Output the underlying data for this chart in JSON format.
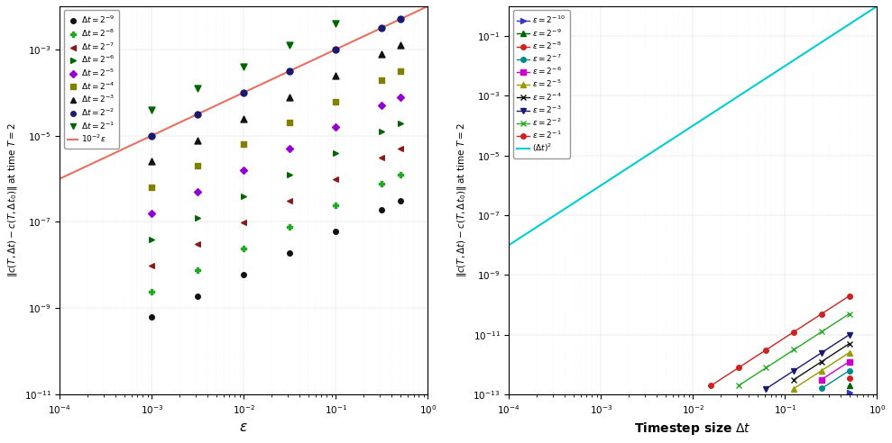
{
  "left_plot": {
    "xlabel": "$\\varepsilon$",
    "ylabel": "$\\|c(T, \\Delta t) - c(T, \\Delta t_0)\\|$ at time $T = 2$",
    "xlim_log": [
      -4,
      0
    ],
    "ylim_log": [
      -11,
      -2
    ],
    "eps_values_log10": [
      -3.0,
      -2.5,
      -2.0,
      -1.5,
      -1.0,
      -0.5,
      -0.3
    ],
    "dt_series": [
      {
        "label": "$\\Delta t = 2^{-9}$",
        "exp": -9,
        "color": "#111111",
        "marker": "o",
        "ms": 4
      },
      {
        "label": "$\\Delta t = 2^{-8}$",
        "exp": -8,
        "color": "#22aa22",
        "marker": "P",
        "ms": 4
      },
      {
        "label": "$\\Delta t = 2^{-7}$",
        "exp": -7,
        "color": "#8b1a1a",
        "marker": "<",
        "ms": 4
      },
      {
        "label": "$\\Delta t = 2^{-6}$",
        "exp": -6,
        "color": "#006400",
        "marker": ">",
        "ms": 4
      },
      {
        "label": "$\\Delta t = 2^{-5}$",
        "exp": -5,
        "color": "#9400d3",
        "marker": "D",
        "ms": 4
      },
      {
        "label": "$\\Delta t = 2^{-4}$",
        "exp": -4,
        "color": "#808000",
        "marker": "s",
        "ms": 5
      },
      {
        "label": "$\\Delta t = 2^{-3}$",
        "exp": -3,
        "color": "#111111",
        "marker": "^",
        "ms": 5
      },
      {
        "label": "$\\Delta t = 2^{-2}$",
        "exp": -2,
        "color": "#191970",
        "marker": "o",
        "ms": 5
      },
      {
        "label": "$\\Delta t = 2^{-1}$",
        "exp": -1,
        "color": "#006400",
        "marker": "v",
        "ms": 5
      }
    ],
    "ref_line_color": "#e87060",
    "ref_line_label": "$10^{-2}\\varepsilon$",
    "ref_coeff": 0.01
  },
  "right_plot": {
    "xlabel": "Timestep size $\\Delta t$",
    "ylabel": "$\\|c(T, \\Delta t) - c(T, \\Delta t_0)\\|$ at time $T = 2$",
    "xlim_log": [
      -4,
      0
    ],
    "ylim_log": [
      -13,
      0
    ],
    "dt_exp_min": -13,
    "dt_exp_max": -1,
    "eps_series": [
      {
        "label": "$\\varepsilon = 2^{-10}$",
        "exp": -10,
        "color": "#3333cc",
        "marker": ">",
        "ms": 4,
        "C_log": -12.35
      },
      {
        "label": "$\\varepsilon = 2^{-9}$",
        "exp": -9,
        "color": "#006400",
        "marker": "^",
        "ms": 4,
        "C_log": -12.1
      },
      {
        "label": "$\\varepsilon = 2^{-8}$",
        "exp": -8,
        "color": "#cc2222",
        "marker": "o",
        "ms": 4,
        "C_log": -11.85
      },
      {
        "label": "$\\varepsilon = 2^{-7}$",
        "exp": -7,
        "color": "#008b8b",
        "marker": "o",
        "ms": 4,
        "C_log": -11.6
      },
      {
        "label": "$\\varepsilon = 2^{-6}$",
        "exp": -6,
        "color": "#cc00cc",
        "marker": "s",
        "ms": 4,
        "C_log": -11.3
      },
      {
        "label": "$\\varepsilon = 2^{-5}$",
        "exp": -5,
        "color": "#999900",
        "marker": "^",
        "ms": 4,
        "C_log": -11.0
      },
      {
        "label": "$\\varepsilon = 2^{-4}$",
        "exp": -4,
        "color": "#111111",
        "marker": "x",
        "ms": 5,
        "C_log": -10.7
      },
      {
        "label": "$\\varepsilon = 2^{-3}$",
        "exp": -3,
        "color": "#191970",
        "marker": "v",
        "ms": 4,
        "C_log": -10.4
      },
      {
        "label": "$\\varepsilon = 2^{-2}$",
        "exp": -2,
        "color": "#22aa22",
        "marker": "x",
        "ms": 5,
        "C_log": -9.7
      },
      {
        "label": "$\\varepsilon = 2^{-1}$",
        "exp": -1,
        "color": "#cc2222",
        "marker": "o",
        "ms": 4,
        "C_log": -9.1
      }
    ],
    "ref_line_color": "#00ced1",
    "ref_line_label": "$(\\Delta t)^2$",
    "ref_C": 1.0
  }
}
